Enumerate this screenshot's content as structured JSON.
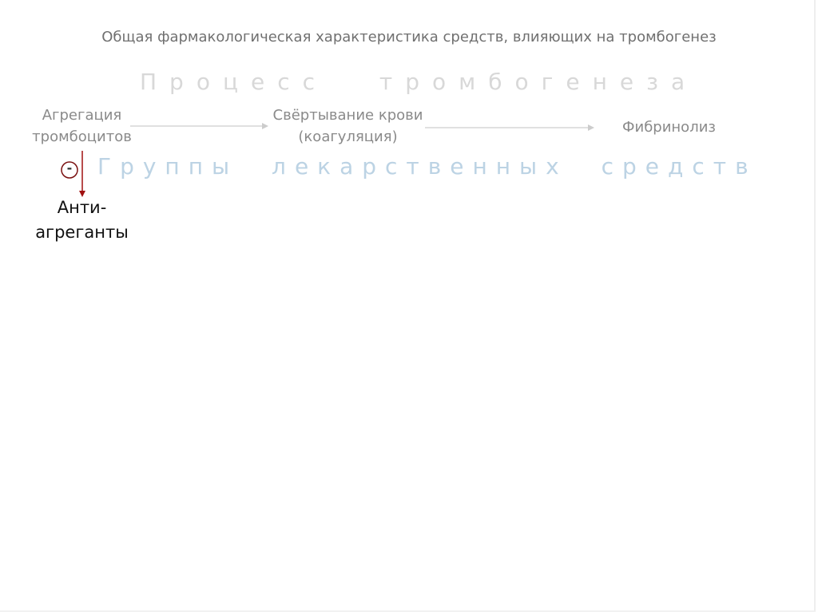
{
  "slide": {
    "title": "Общая фармакологическая характеристика средств, влияющих на тромбогенез",
    "process_heading": "Процесс тромбогенеза",
    "groups_heading": "Группы лекарственных средств",
    "stages": [
      {
        "line1": "Агрегация",
        "line2": "тромбоцитов"
      },
      {
        "line1": "Свёртывание крови",
        "line2": "(коагуляция)"
      },
      {
        "line1": "Фибринолиз"
      }
    ],
    "inhibition_sign": "-",
    "drug_group": {
      "line1": "Анти-",
      "line2": "агреганты"
    },
    "colors": {
      "process_heading": "#d8d8d8",
      "groups_heading": "#bcd3e4",
      "inhibit_arrow": "#a01010"
    }
  }
}
